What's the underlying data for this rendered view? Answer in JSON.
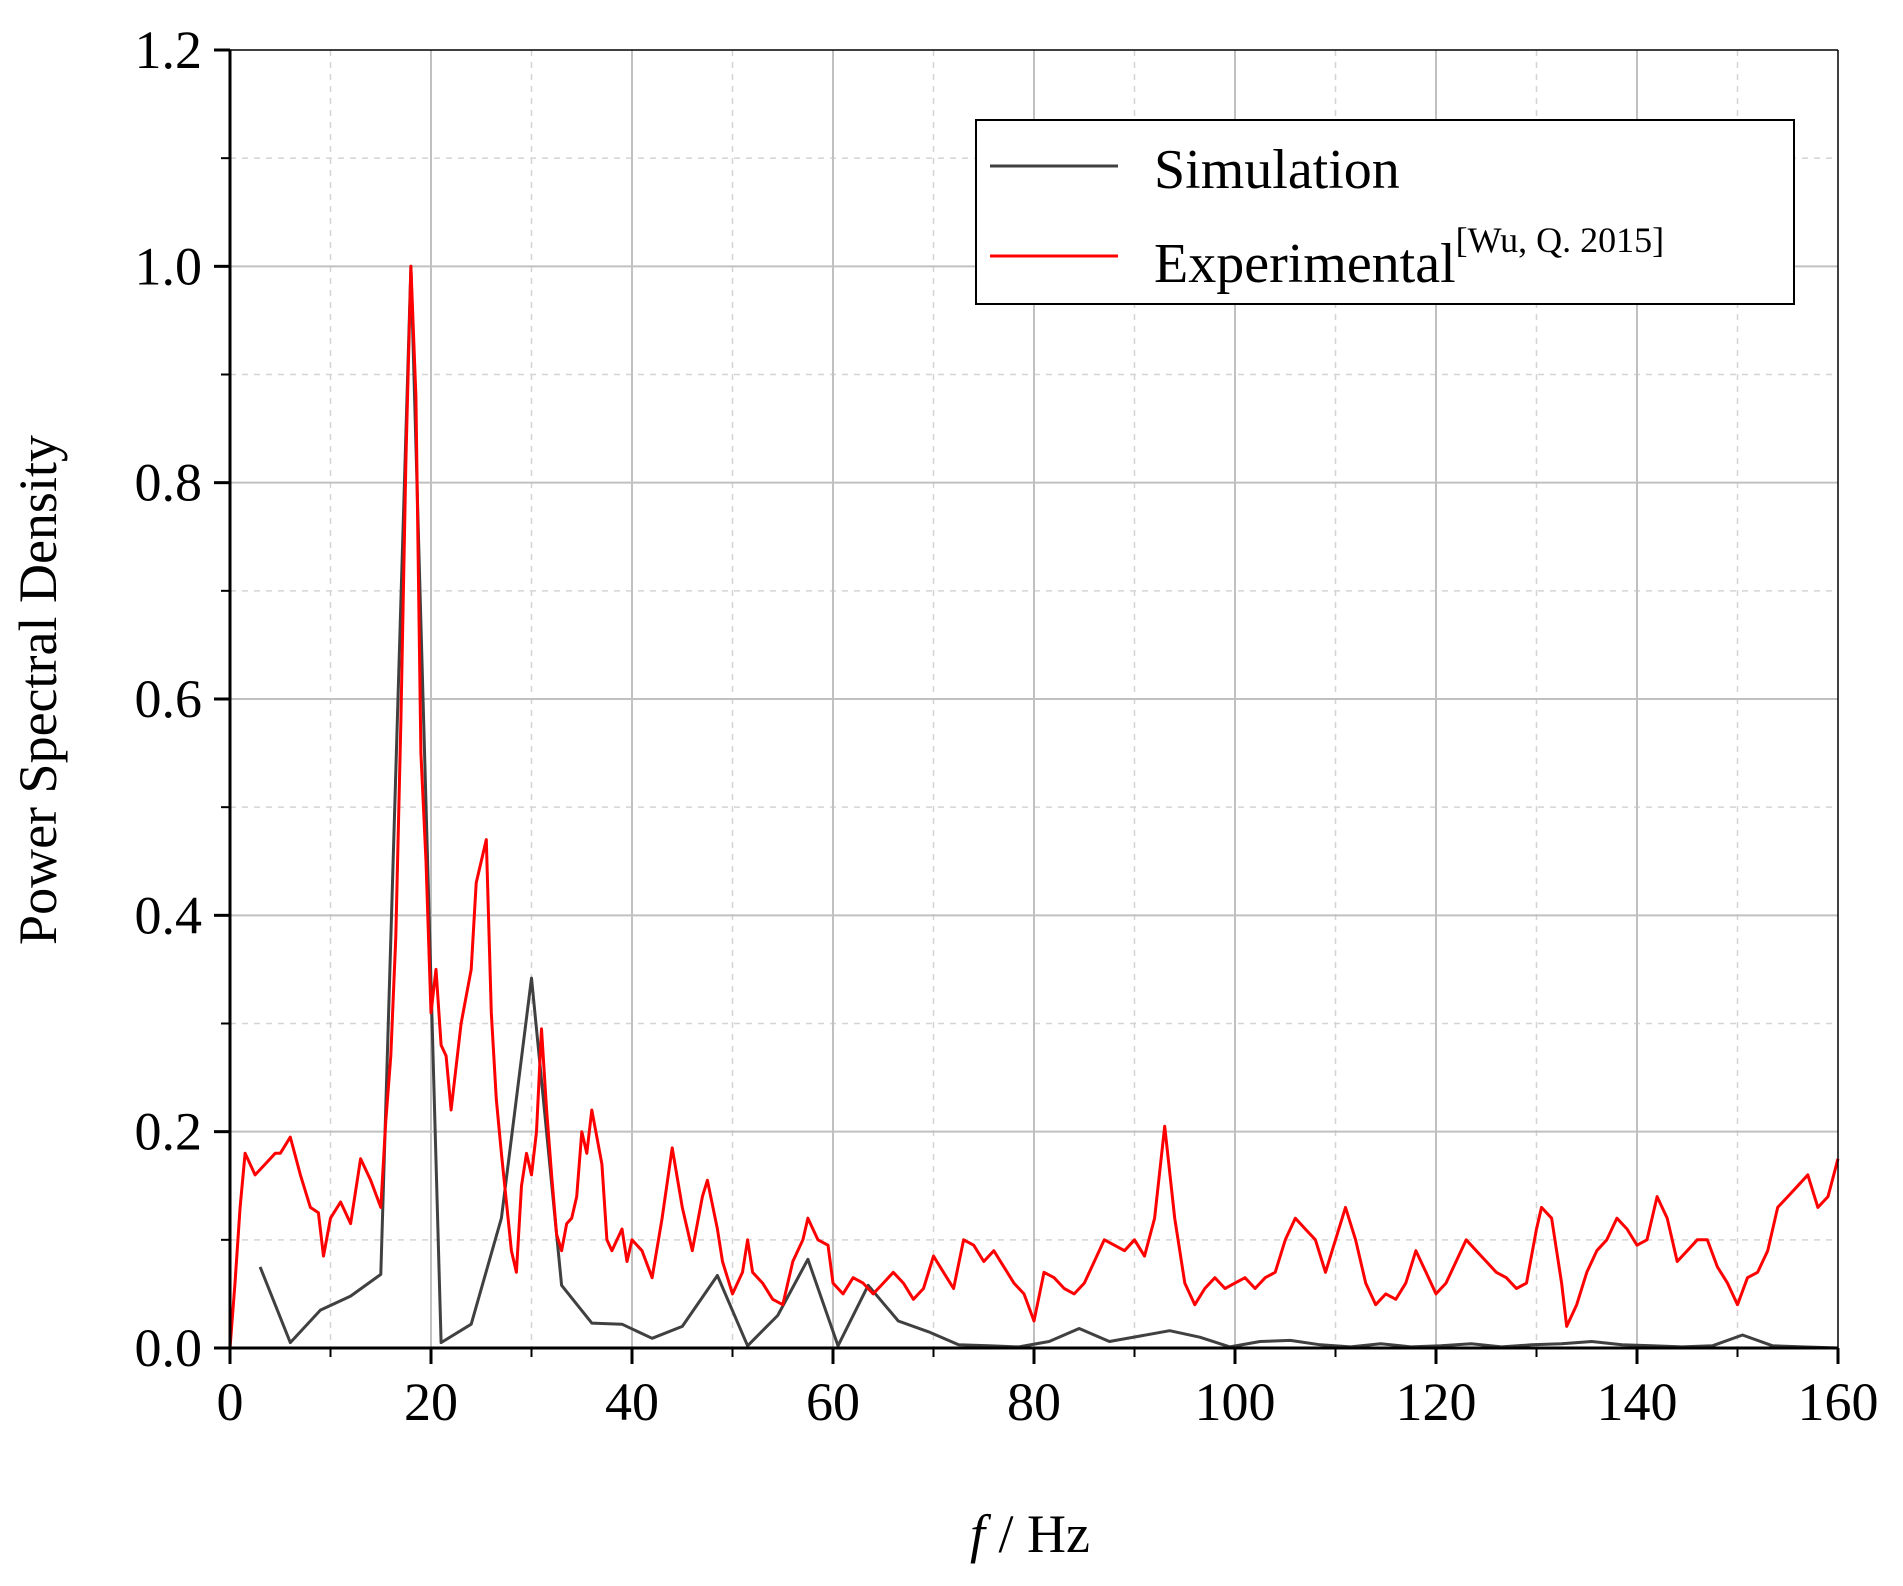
{
  "chart_data": {
    "type": "line",
    "xlabel_italic": "f",
    "xlabel_rest": " / Hz",
    "ylabel": "Power Spectral Density",
    "xlim": [
      0,
      160
    ],
    "ylim": [
      0.0,
      1.2
    ],
    "x_ticks": [
      0,
      20,
      40,
      60,
      80,
      100,
      120,
      140,
      160
    ],
    "y_ticks": [
      "0.0",
      "0.2",
      "0.4",
      "0.6",
      "0.8",
      "1.0",
      "1.2"
    ],
    "grid": true,
    "legend_position": "top-right",
    "series": [
      {
        "name": "Simulation",
        "color": "#404040",
        "points": [
          [
            3,
            0.075
          ],
          [
            6,
            0.005
          ],
          [
            9,
            0.035
          ],
          [
            12,
            0.048
          ],
          [
            15,
            0.068
          ],
          [
            18,
            1.0
          ],
          [
            21,
            0.005
          ],
          [
            24,
            0.022
          ],
          [
            27,
            0.12
          ],
          [
            30,
            0.342
          ],
          [
            33,
            0.058
          ],
          [
            36,
            0.023
          ],
          [
            39,
            0.022
          ],
          [
            42,
            0.009
          ],
          [
            45,
            0.02
          ],
          [
            48.5,
            0.067
          ],
          [
            51.5,
            0.002
          ],
          [
            54.5,
            0.03
          ],
          [
            57.5,
            0.082
          ],
          [
            60.5,
            0.002
          ],
          [
            63.5,
            0.058
          ],
          [
            66.5,
            0.025
          ],
          [
            69.5,
            0.015
          ],
          [
            72.5,
            0.003
          ],
          [
            75.5,
            0.002
          ],
          [
            78.5,
            0.001
          ],
          [
            81.5,
            0.006
          ],
          [
            84.5,
            0.018
          ],
          [
            87.5,
            0.006
          ],
          [
            90.5,
            0.011
          ],
          [
            93.5,
            0.016
          ],
          [
            96.5,
            0.01
          ],
          [
            99.5,
            0.001
          ],
          [
            102.5,
            0.006
          ],
          [
            105.5,
            0.007
          ],
          [
            108.5,
            0.003
          ],
          [
            111.5,
            0.001
          ],
          [
            114.5,
            0.004
          ],
          [
            117.5,
            0.001
          ],
          [
            120.5,
            0.002
          ],
          [
            123.5,
            0.004
          ],
          [
            126.5,
            0.001
          ],
          [
            129.5,
            0.003
          ],
          [
            132.5,
            0.004
          ],
          [
            135.5,
            0.006
          ],
          [
            138.5,
            0.003
          ],
          [
            141.5,
            0.002
          ],
          [
            144.5,
            0.001
          ],
          [
            147.5,
            0.002
          ],
          [
            150.5,
            0.012
          ],
          [
            153.5,
            0.002
          ],
          [
            156.5,
            0.001
          ],
          [
            160,
            0.0
          ]
        ]
      },
      {
        "name": "Experimental",
        "citation": "[Wu, Q. 2015]",
        "color": "#ff0000",
        "points": [
          [
            0,
            0.0
          ],
          [
            0.5,
            0.06
          ],
          [
            1,
            0.13
          ],
          [
            1.5,
            0.18
          ],
          [
            2.5,
            0.16
          ],
          [
            3.5,
            0.17
          ],
          [
            4.5,
            0.18
          ],
          [
            5,
            0.18
          ],
          [
            6,
            0.195
          ],
          [
            7,
            0.16
          ],
          [
            8,
            0.13
          ],
          [
            8.8,
            0.125
          ],
          [
            9.3,
            0.085
          ],
          [
            10,
            0.12
          ],
          [
            11,
            0.135
          ],
          [
            12,
            0.115
          ],
          [
            13,
            0.175
          ],
          [
            14,
            0.155
          ],
          [
            15,
            0.13
          ],
          [
            15.5,
            0.21
          ],
          [
            16,
            0.27
          ],
          [
            16.5,
            0.38
          ],
          [
            17,
            0.58
          ],
          [
            17.5,
            0.82
          ],
          [
            18,
            1.0
          ],
          [
            18.5,
            0.88
          ],
          [
            19,
            0.55
          ],
          [
            19.5,
            0.45
          ],
          [
            20,
            0.31
          ],
          [
            20.5,
            0.35
          ],
          [
            21,
            0.28
          ],
          [
            21.5,
            0.27
          ],
          [
            22,
            0.22
          ],
          [
            23,
            0.3
          ],
          [
            24,
            0.35
          ],
          [
            24.5,
            0.43
          ],
          [
            25.5,
            0.47
          ],
          [
            26,
            0.31
          ],
          [
            26.5,
            0.23
          ],
          [
            27,
            0.18
          ],
          [
            28,
            0.09
          ],
          [
            28.5,
            0.07
          ],
          [
            29,
            0.15
          ],
          [
            29.5,
            0.18
          ],
          [
            30,
            0.16
          ],
          [
            30.5,
            0.2
          ],
          [
            31,
            0.295
          ],
          [
            31.5,
            0.22
          ],
          [
            32,
            0.16
          ],
          [
            32.5,
            0.105
          ],
          [
            33,
            0.09
          ],
          [
            33.5,
            0.115
          ],
          [
            34,
            0.12
          ],
          [
            34.5,
            0.14
          ],
          [
            35,
            0.2
          ],
          [
            35.5,
            0.18
          ],
          [
            36,
            0.22
          ],
          [
            37,
            0.17
          ],
          [
            37.5,
            0.1
          ],
          [
            38,
            0.09
          ],
          [
            39,
            0.11
          ],
          [
            39.5,
            0.08
          ],
          [
            40,
            0.1
          ],
          [
            41,
            0.09
          ],
          [
            42,
            0.065
          ],
          [
            43,
            0.12
          ],
          [
            44,
            0.185
          ],
          [
            45,
            0.13
          ],
          [
            46,
            0.09
          ],
          [
            47,
            0.14
          ],
          [
            47.5,
            0.155
          ],
          [
            48.5,
            0.11
          ],
          [
            49,
            0.08
          ],
          [
            50,
            0.05
          ],
          [
            51,
            0.07
          ],
          [
            51.5,
            0.1
          ],
          [
            52,
            0.07
          ],
          [
            53,
            0.06
          ],
          [
            54,
            0.045
          ],
          [
            55,
            0.04
          ],
          [
            56,
            0.08
          ],
          [
            57,
            0.1
          ],
          [
            57.5,
            0.12
          ],
          [
            58.5,
            0.1
          ],
          [
            59.5,
            0.095
          ],
          [
            60,
            0.06
          ],
          [
            61,
            0.05
          ],
          [
            62,
            0.065
          ],
          [
            63,
            0.06
          ],
          [
            64,
            0.05
          ],
          [
            65,
            0.06
          ],
          [
            66,
            0.07
          ],
          [
            67,
            0.06
          ],
          [
            68,
            0.045
          ],
          [
            69,
            0.055
          ],
          [
            70,
            0.085
          ],
          [
            71,
            0.07
          ],
          [
            72,
            0.055
          ],
          [
            73,
            0.1
          ],
          [
            74,
            0.095
          ],
          [
            75,
            0.08
          ],
          [
            76,
            0.09
          ],
          [
            77,
            0.075
          ],
          [
            78,
            0.06
          ],
          [
            79,
            0.05
          ],
          [
            80,
            0.025
          ],
          [
            81,
            0.07
          ],
          [
            82,
            0.065
          ],
          [
            83,
            0.055
          ],
          [
            84,
            0.05
          ],
          [
            85,
            0.06
          ],
          [
            86,
            0.08
          ],
          [
            87,
            0.1
          ],
          [
            88,
            0.095
          ],
          [
            89,
            0.09
          ],
          [
            90,
            0.1
          ],
          [
            91,
            0.085
          ],
          [
            92,
            0.12
          ],
          [
            93,
            0.205
          ],
          [
            94,
            0.12
          ],
          [
            95,
            0.06
          ],
          [
            96,
            0.04
          ],
          [
            97,
            0.055
          ],
          [
            98,
            0.065
          ],
          [
            99,
            0.055
          ],
          [
            100,
            0.06
          ],
          [
            101,
            0.065
          ],
          [
            102,
            0.055
          ],
          [
            103,
            0.065
          ],
          [
            104,
            0.07
          ],
          [
            105,
            0.1
          ],
          [
            106,
            0.12
          ],
          [
            107,
            0.11
          ],
          [
            108,
            0.1
          ],
          [
            109,
            0.07
          ],
          [
            110,
            0.1
          ],
          [
            111,
            0.13
          ],
          [
            112,
            0.1
          ],
          [
            113,
            0.06
          ],
          [
            114,
            0.04
          ],
          [
            115,
            0.05
          ],
          [
            116,
            0.045
          ],
          [
            117,
            0.06
          ],
          [
            118,
            0.09
          ],
          [
            119,
            0.07
          ],
          [
            120,
            0.05
          ],
          [
            121,
            0.06
          ],
          [
            122,
            0.08
          ],
          [
            123,
            0.1
          ],
          [
            124,
            0.09
          ],
          [
            125,
            0.08
          ],
          [
            126,
            0.07
          ],
          [
            127,
            0.065
          ],
          [
            128,
            0.055
          ],
          [
            129,
            0.06
          ],
          [
            130,
            0.11
          ],
          [
            130.5,
            0.13
          ],
          [
            131.5,
            0.12
          ],
          [
            132.5,
            0.06
          ],
          [
            133,
            0.02
          ],
          [
            134,
            0.04
          ],
          [
            135,
            0.07
          ],
          [
            136,
            0.09
          ],
          [
            137,
            0.1
          ],
          [
            138,
            0.12
          ],
          [
            139,
            0.11
          ],
          [
            140,
            0.095
          ],
          [
            141,
            0.1
          ],
          [
            142,
            0.14
          ],
          [
            143,
            0.12
          ],
          [
            144,
            0.08
          ],
          [
            145,
            0.09
          ],
          [
            146,
            0.1
          ],
          [
            147,
            0.1
          ],
          [
            148,
            0.075
          ],
          [
            149,
            0.06
          ],
          [
            150,
            0.04
          ],
          [
            151,
            0.065
          ],
          [
            152,
            0.07
          ],
          [
            153,
            0.09
          ],
          [
            154,
            0.13
          ],
          [
            155,
            0.14
          ],
          [
            156,
            0.15
          ],
          [
            157,
            0.16
          ],
          [
            158,
            0.13
          ],
          [
            159,
            0.14
          ],
          [
            160,
            0.175
          ]
        ]
      }
    ]
  }
}
